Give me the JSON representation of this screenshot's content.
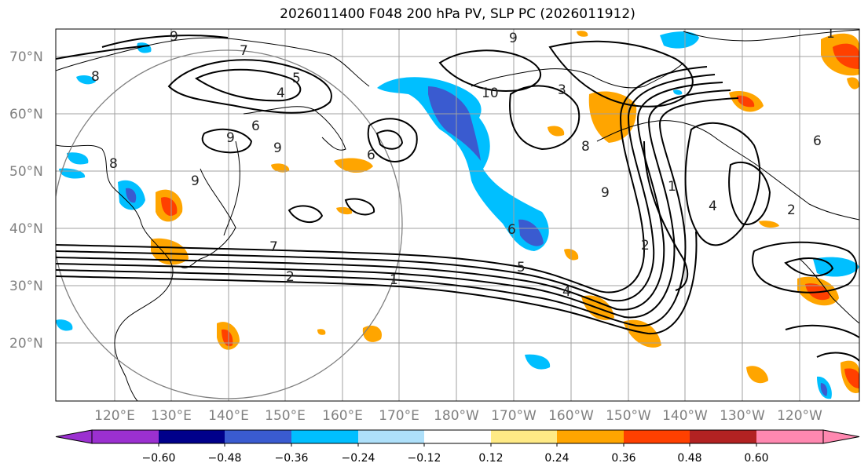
{
  "title": "2026011400 F048 200 hPa PV, SLP PC (2026011912)",
  "map": {
    "lat_labels": [
      "70°N",
      "60°N",
      "50°N",
      "40°N",
      "30°N",
      "20°N"
    ],
    "lon_labels": [
      "120°E",
      "130°E",
      "140°E",
      "150°E",
      "160°E",
      "170°E",
      "180°W",
      "170°W",
      "160°W",
      "150°W",
      "140°W",
      "130°W",
      "120°W"
    ],
    "contour_labels": [
      "9",
      "7",
      "8",
      "5",
      "4",
      "6",
      "9",
      "9",
      "8",
      "9",
      "6",
      "7",
      "2",
      "1",
      "6",
      "10",
      "9",
      "3",
      "8",
      "9",
      "1",
      "4",
      "2",
      "5",
      "6",
      "4",
      "2",
      "1"
    ]
  },
  "colorbar": {
    "ticks": [
      "−0.60",
      "−0.48",
      "−0.36",
      "−0.24",
      "−0.12",
      "0.12",
      "0.24",
      "0.36",
      "0.48",
      "0.60"
    ],
    "colors": [
      "#9b30d0",
      "#00008b",
      "#3a5bd0",
      "#00bfff",
      "#aee0fa",
      "#ffffff",
      "#ffea85",
      "#ffa500",
      "#ff4000",
      "#b22222",
      "#ff88b0"
    ]
  }
}
